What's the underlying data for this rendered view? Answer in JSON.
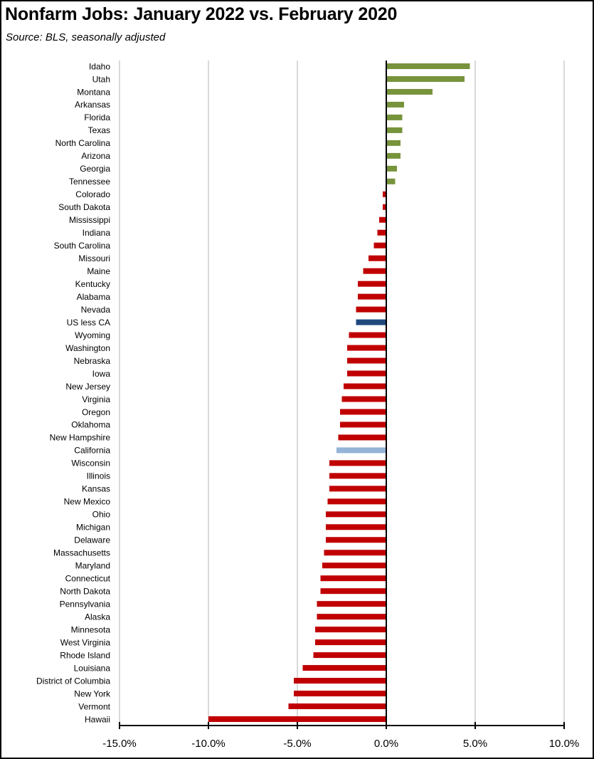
{
  "title": "Nonfarm Jobs:  January 2022 vs. February 2020",
  "subtitle": "Source:  BLS, seasonally adjusted",
  "chart_data": {
    "type": "bar",
    "orientation": "horizontal",
    "title": "Nonfarm Jobs:  January 2022 vs. February 2020",
    "subtitle": "Source:  BLS, seasonally adjusted",
    "xlabel": "",
    "ylabel": "",
    "xlim": [
      -15,
      10
    ],
    "x_ticks": [
      -15,
      -10,
      -5,
      0,
      5,
      10
    ],
    "x_tick_labels": [
      "-15.0%",
      "-10.0%",
      "-5.0%",
      "0.0%",
      "5.0%",
      "10.0%"
    ],
    "grid": "vertical",
    "legend": "none",
    "colors": {
      "positive": "#77933C",
      "negative": "#C00000",
      "us_less_ca": "#1F497D",
      "california": "#95B3D7",
      "grid": "#D9D9D9",
      "axis": "#000000"
    },
    "categories": [
      "Idaho",
      "Utah",
      "Montana",
      "Arkansas",
      "Florida",
      "Texas",
      "North Carolina",
      "Arizona",
      "Georgia",
      "Tennessee",
      "Colorado",
      "South Dakota",
      "Mississippi",
      "Indiana",
      "South Carolina",
      "Missouri",
      "Maine",
      "Kentucky",
      "Alabama",
      "Nevada",
      "US less CA",
      "Wyoming",
      "Washington",
      "Nebraska",
      "Iowa",
      "New Jersey",
      "Virginia",
      "Oregon",
      "Oklahoma",
      "New Hampshire",
      "California",
      "Wisconsin",
      "Illinois",
      "Kansas",
      "New Mexico",
      "Ohio",
      "Michigan",
      "Delaware",
      "Massachusetts",
      "Maryland",
      "Connecticut",
      "North Dakota",
      "Pennsylvania",
      "Alaska",
      "Minnesota",
      "West Virginia",
      "Rhode Island",
      "Louisiana",
      "District of Columbia",
      "New York",
      "Vermont",
      "Hawaii"
    ],
    "values": [
      4.7,
      4.4,
      2.6,
      1.0,
      0.9,
      0.9,
      0.8,
      0.8,
      0.6,
      0.5,
      -0.2,
      -0.2,
      -0.4,
      -0.5,
      -0.7,
      -1.0,
      -1.3,
      -1.6,
      -1.6,
      -1.7,
      -1.7,
      -2.1,
      -2.2,
      -2.2,
      -2.2,
      -2.4,
      -2.5,
      -2.6,
      -2.6,
      -2.7,
      -2.8,
      -3.2,
      -3.2,
      -3.2,
      -3.3,
      -3.4,
      -3.4,
      -3.4,
      -3.5,
      -3.6,
      -3.7,
      -3.7,
      -3.9,
      -3.9,
      -4.0,
      -4.0,
      -4.1,
      -4.7,
      -5.2,
      -5.2,
      -5.5,
      -10.0
    ]
  }
}
